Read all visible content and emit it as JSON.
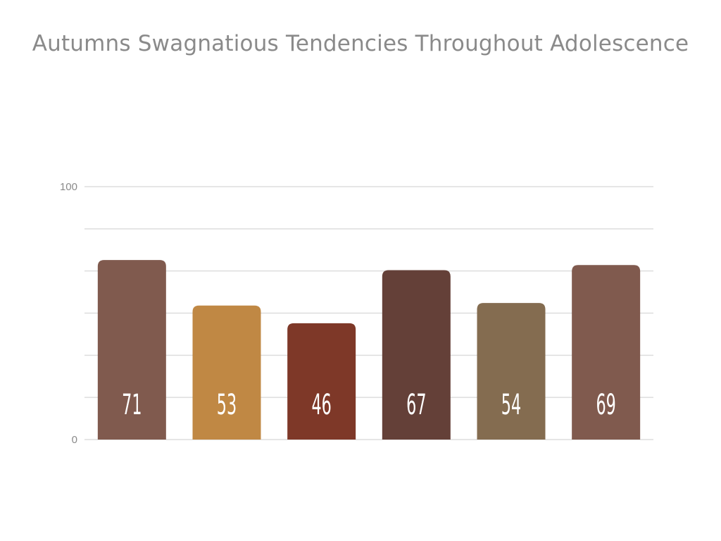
{
  "chart_data": {
    "type": "bar",
    "title": "Autumns Swagnatious Tendencies Throughout Adolescence",
    "xlabel": "",
    "ylabel": "",
    "categories": [
      "",
      "",
      "",
      "",
      "",
      ""
    ],
    "values": [
      71,
      53,
      46,
      67,
      54,
      69
    ],
    "colors": [
      "#805a4e",
      "#c08844",
      "#7e3828",
      "#644038",
      "#846c50",
      "#805a4e"
    ],
    "ylim": [
      0,
      100
    ],
    "y_tick_labels": [
      "0",
      "100"
    ],
    "gridlines": 6,
    "grid": true,
    "legend": "none",
    "data_labels": [
      "71",
      "53",
      "46",
      "67",
      "54",
      "69"
    ]
  }
}
